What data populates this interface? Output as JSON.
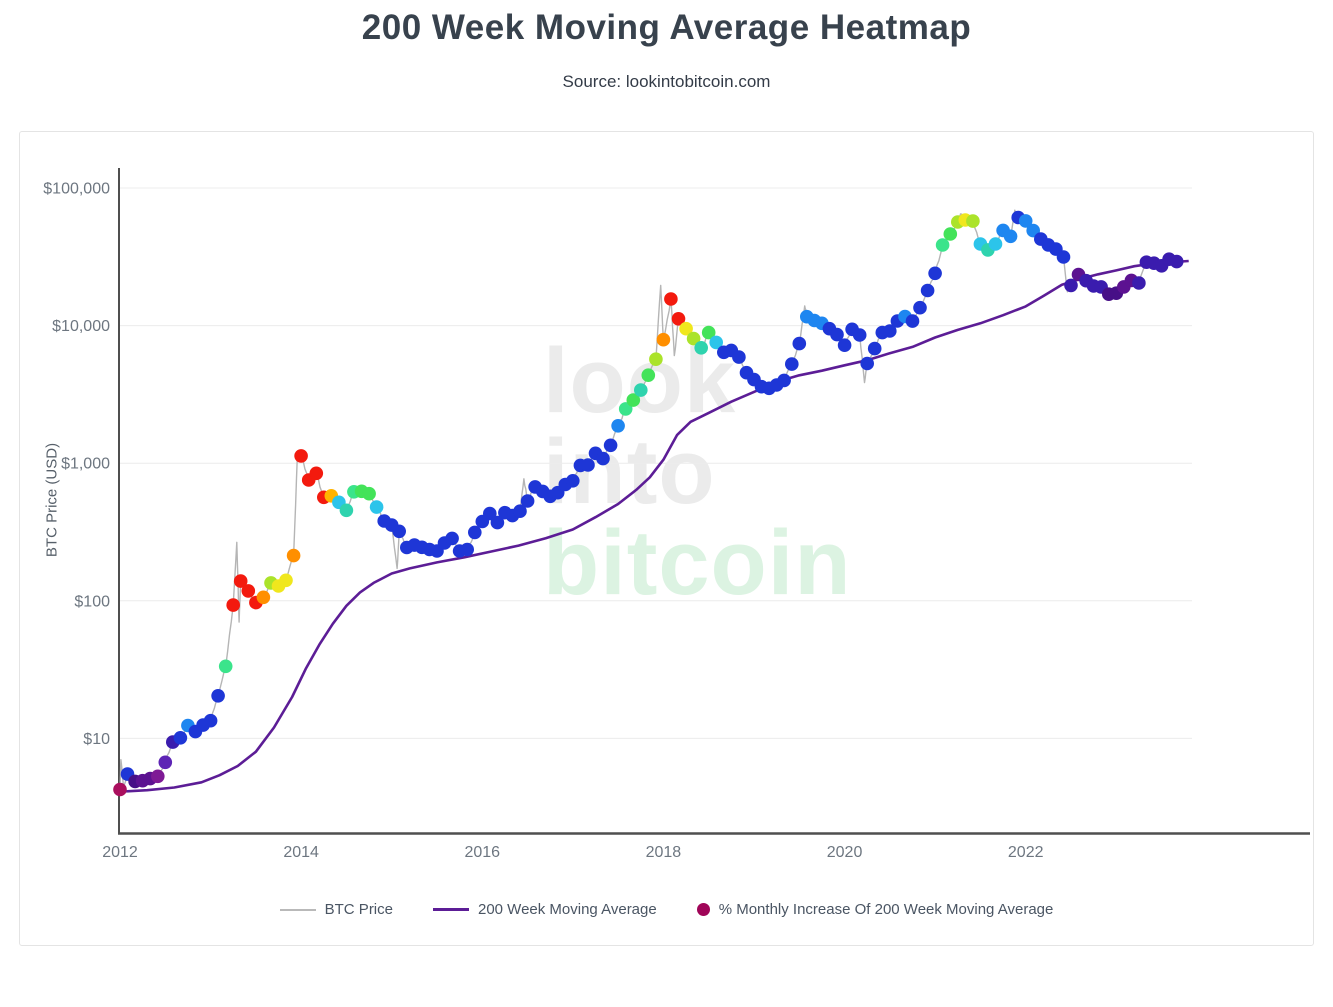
{
  "page": {
    "title": "200 Week Moving Average Heatmap",
    "subtitle": "Source: lookintobitcoin.com"
  },
  "watermark": {
    "lines": [
      "look",
      "into",
      "bitcoin"
    ],
    "gray": "#ebebeb",
    "green": "#dcf3e2"
  },
  "legend": {
    "items": [
      {
        "label": "BTC Price",
        "swatch": "line",
        "color": "#b9b9b9"
      },
      {
        "label": "200 Week Moving Average",
        "swatch": "line",
        "color": "#5c1d96"
      },
      {
        "label": "% Monthly Increase Of 200 Week Moving Average",
        "swatch": "dot",
        "color": "#a00558"
      }
    ]
  },
  "chart_data": {
    "type": "scatter",
    "title": "200 Week Moving Average Heatmap",
    "ylabel": "BTC Price (USD)",
    "y_scale": "log",
    "grid": true,
    "x_ticks": [
      2012,
      2014,
      2016,
      2018,
      2020,
      2022
    ],
    "y_ticks": [
      {
        "label": "$100,000",
        "value": 100000
      },
      {
        "label": "$10,000",
        "value": 10000
      },
      {
        "label": "$1,000",
        "value": 1000
      },
      {
        "label": "$100",
        "value": 100
      },
      {
        "label": "$10",
        "value": 10
      }
    ],
    "xlim": [
      2011.95,
      2023.85
    ],
    "ylim": [
      2,
      130000
    ],
    "palette": {
      "magenta": "#aa0f5e",
      "darkPurple": "#470f87",
      "purple": "#5c1291",
      "violet": "#7e1a95",
      "blueViolet": "#5d24b5",
      "indigo": "#3a1cae",
      "blue": "#1e36d6",
      "lightBlue": "#1e86f0",
      "cyan": "#2cc4ea",
      "teal": "#2fd3ae",
      "springGreen": "#3be48b",
      "green": "#43e359",
      "yellowGreen": "#abe32a",
      "yellow": "#f0e71d",
      "amber": "#ffb300",
      "orange": "#ff8f00",
      "red": "#f31a0e"
    },
    "series": [
      {
        "name": "BTC Price",
        "type": "line",
        "color": "#b5b5b5",
        "wick_points": [
          [
            2012.01,
            7.0
          ],
          [
            2012.04,
            4.4
          ],
          [
            2013.29,
            266
          ],
          [
            2013.315,
            70
          ],
          [
            2013.96,
            1200
          ],
          [
            2015.06,
            172
          ],
          [
            2016.46,
            770
          ],
          [
            2017.97,
            19600
          ],
          [
            2018.12,
            6050
          ],
          [
            2019.56,
            13900
          ],
          [
            2020.22,
            3850
          ],
          [
            2021.28,
            64800
          ],
          [
            2021.88,
            69000
          ],
          [
            2022.46,
            17600
          ],
          [
            2022.88,
            15500
          ],
          [
            2023.72,
            29500
          ]
        ]
      },
      {
        "name": "200 Week Moving Average",
        "type": "line",
        "color": "#5c1d96",
        "points": [
          [
            2012.0,
            4.1
          ],
          [
            2012.3,
            4.2
          ],
          [
            2012.6,
            4.4
          ],
          [
            2012.9,
            4.8
          ],
          [
            2013.1,
            5.4
          ],
          [
            2013.3,
            6.3
          ],
          [
            2013.5,
            8
          ],
          [
            2013.7,
            12
          ],
          [
            2013.9,
            20
          ],
          [
            2014.05,
            32
          ],
          [
            2014.2,
            48
          ],
          [
            2014.35,
            68
          ],
          [
            2014.5,
            92
          ],
          [
            2014.65,
            115
          ],
          [
            2014.8,
            135
          ],
          [
            2015.0,
            158
          ],
          [
            2015.2,
            172
          ],
          [
            2015.5,
            190
          ],
          [
            2015.8,
            207
          ],
          [
            2016.1,
            228
          ],
          [
            2016.4,
            252
          ],
          [
            2016.7,
            285
          ],
          [
            2017.0,
            330
          ],
          [
            2017.25,
            405
          ],
          [
            2017.5,
            505
          ],
          [
            2017.7,
            640
          ],
          [
            2017.85,
            790
          ],
          [
            2018.0,
            1060
          ],
          [
            2018.15,
            1600
          ],
          [
            2018.3,
            2000
          ],
          [
            2018.5,
            2320
          ],
          [
            2018.75,
            2800
          ],
          [
            2019.0,
            3300
          ],
          [
            2019.25,
            3900
          ],
          [
            2019.5,
            4350
          ],
          [
            2019.75,
            4700
          ],
          [
            2020.0,
            5150
          ],
          [
            2020.25,
            5600
          ],
          [
            2020.5,
            6300
          ],
          [
            2020.75,
            7000
          ],
          [
            2021.0,
            8200
          ],
          [
            2021.25,
            9300
          ],
          [
            2021.5,
            10400
          ],
          [
            2021.75,
            11900
          ],
          [
            2022.0,
            13800
          ],
          [
            2022.2,
            16500
          ],
          [
            2022.4,
            19800
          ],
          [
            2022.6,
            21800
          ],
          [
            2022.8,
            23600
          ],
          [
            2023.0,
            25200
          ],
          [
            2023.2,
            27000
          ],
          [
            2023.4,
            28200
          ],
          [
            2023.6,
            28900
          ],
          [
            2023.8,
            29500
          ]
        ]
      },
      {
        "name": "% Monthly Increase Of 200 Week Moving Average",
        "type": "scatter",
        "points": [
          [
            2012.0,
            4.25,
            "magenta"
          ],
          [
            2012.083,
            5.5,
            "blue"
          ],
          [
            2012.167,
            4.87,
            "darkPurple"
          ],
          [
            2012.25,
            4.93,
            "purple"
          ],
          [
            2012.333,
            5.1,
            "purple"
          ],
          [
            2012.417,
            5.3,
            "violet"
          ],
          [
            2012.5,
            6.7,
            "blueViolet"
          ],
          [
            2012.583,
            9.4,
            "indigo"
          ],
          [
            2012.667,
            10.1,
            "blue"
          ],
          [
            2012.75,
            12.4,
            "lightBlue"
          ],
          [
            2012.833,
            11.2,
            "blue"
          ],
          [
            2012.917,
            12.5,
            "blue"
          ],
          [
            2013.0,
            13.45,
            "blue"
          ],
          [
            2013.083,
            20.4,
            "blue"
          ],
          [
            2013.167,
            33.4,
            "springGreen"
          ],
          [
            2013.25,
            93,
            "red"
          ],
          [
            2013.333,
            139,
            "red"
          ],
          [
            2013.417,
            118,
            "red"
          ],
          [
            2013.5,
            97,
            "red"
          ],
          [
            2013.583,
            106,
            "orange"
          ],
          [
            2013.667,
            135,
            "yellowGreen"
          ],
          [
            2013.75,
            128,
            "yellow"
          ],
          [
            2013.833,
            141,
            "yellow"
          ],
          [
            2013.917,
            213,
            "orange"
          ],
          [
            2014.0,
            1130,
            "red"
          ],
          [
            2014.083,
            755,
            "red"
          ],
          [
            2014.167,
            845,
            "red"
          ],
          [
            2014.25,
            565,
            "red"
          ],
          [
            2014.333,
            580,
            "amber"
          ],
          [
            2014.417,
            520,
            "cyan"
          ],
          [
            2014.5,
            455,
            "teal"
          ],
          [
            2014.583,
            620,
            "springGreen"
          ],
          [
            2014.667,
            625,
            "green"
          ],
          [
            2014.75,
            600,
            "green"
          ],
          [
            2014.833,
            480,
            "cyan"
          ],
          [
            2014.917,
            380,
            "blue"
          ],
          [
            2015.0,
            355,
            "blue"
          ],
          [
            2015.083,
            320,
            "blue"
          ],
          [
            2015.167,
            244,
            "blue"
          ],
          [
            2015.25,
            254,
            "blue"
          ],
          [
            2015.333,
            245,
            "blue"
          ],
          [
            2015.417,
            236,
            "blue"
          ],
          [
            2015.5,
            230,
            "blue"
          ],
          [
            2015.583,
            263,
            "blue"
          ],
          [
            2015.667,
            284,
            "blue"
          ],
          [
            2015.75,
            230,
            "blue"
          ],
          [
            2015.833,
            236,
            "blue"
          ],
          [
            2015.917,
            314,
            "blue"
          ],
          [
            2016.0,
            377,
            "blue"
          ],
          [
            2016.083,
            430,
            "blue"
          ],
          [
            2016.167,
            370,
            "blue"
          ],
          [
            2016.25,
            437,
            "blue"
          ],
          [
            2016.333,
            416,
            "blue"
          ],
          [
            2016.417,
            448,
            "blue"
          ],
          [
            2016.5,
            531,
            "blue"
          ],
          [
            2016.583,
            673,
            "blue"
          ],
          [
            2016.667,
            624,
            "blue"
          ],
          [
            2016.75,
            575,
            "blue"
          ],
          [
            2016.833,
            610,
            "blue"
          ],
          [
            2016.917,
            700,
            "blue"
          ],
          [
            2017.0,
            745,
            "blue"
          ],
          [
            2017.083,
            964,
            "blue"
          ],
          [
            2017.167,
            970,
            "blue"
          ],
          [
            2017.25,
            1180,
            "blue"
          ],
          [
            2017.333,
            1080,
            "blue"
          ],
          [
            2017.417,
            1350,
            "blue"
          ],
          [
            2017.5,
            1870,
            "lightBlue"
          ],
          [
            2017.583,
            2480,
            "springGreen"
          ],
          [
            2017.667,
            2875,
            "green"
          ],
          [
            2017.75,
            3400,
            "teal"
          ],
          [
            2017.833,
            4360,
            "green"
          ],
          [
            2017.917,
            5700,
            "yellowGreen"
          ],
          [
            2018.0,
            7900,
            "orange"
          ],
          [
            2018.083,
            15600,
            "red"
          ],
          [
            2018.167,
            11200,
            "red"
          ],
          [
            2018.25,
            9500,
            "yellow"
          ],
          [
            2018.333,
            8050,
            "yellowGreen"
          ],
          [
            2018.417,
            6900,
            "teal"
          ],
          [
            2018.5,
            8900,
            "green"
          ],
          [
            2018.583,
            7550,
            "cyan"
          ],
          [
            2018.667,
            6400,
            "blue"
          ],
          [
            2018.75,
            6600,
            "blue"
          ],
          [
            2018.833,
            5900,
            "blue"
          ],
          [
            2018.917,
            4550,
            "blue"
          ],
          [
            2019.0,
            4050,
            "blue"
          ],
          [
            2019.083,
            3600,
            "blue"
          ],
          [
            2019.167,
            3500,
            "blue"
          ],
          [
            2019.25,
            3700,
            "blue"
          ],
          [
            2019.333,
            4000,
            "blue"
          ],
          [
            2019.417,
            5250,
            "blue"
          ],
          [
            2019.5,
            7400,
            "blue"
          ],
          [
            2019.583,
            11600,
            "lightBlue"
          ],
          [
            2019.667,
            10900,
            "lightBlue"
          ],
          [
            2019.75,
            10400,
            "lightBlue"
          ],
          [
            2019.833,
            9500,
            "blue"
          ],
          [
            2019.917,
            8600,
            "blue"
          ],
          [
            2020.0,
            7200,
            "blue"
          ],
          [
            2020.083,
            9400,
            "blue"
          ],
          [
            2020.167,
            8550,
            "blue"
          ],
          [
            2020.25,
            5300,
            "blue"
          ],
          [
            2020.333,
            6800,
            "blue"
          ],
          [
            2020.417,
            8900,
            "blue"
          ],
          [
            2020.5,
            9140,
            "blue"
          ],
          [
            2020.583,
            10800,
            "blue"
          ],
          [
            2020.667,
            11650,
            "lightBlue"
          ],
          [
            2020.75,
            10780,
            "blue"
          ],
          [
            2020.833,
            13500,
            "blue"
          ],
          [
            2020.917,
            18000,
            "blue"
          ],
          [
            2021.0,
            24000,
            "blue"
          ],
          [
            2021.083,
            38500,
            "springGreen"
          ],
          [
            2021.167,
            46300,
            "green"
          ],
          [
            2021.25,
            56600,
            "yellowGreen"
          ],
          [
            2021.333,
            58500,
            "yellow"
          ],
          [
            2021.417,
            57500,
            "yellowGreen"
          ],
          [
            2021.5,
            39200,
            "cyan"
          ],
          [
            2021.583,
            35500,
            "teal"
          ],
          [
            2021.667,
            39200,
            "cyan"
          ],
          [
            2021.75,
            49200,
            "lightBlue"
          ],
          [
            2021.833,
            44600,
            "lightBlue"
          ],
          [
            2021.917,
            61000,
            "blue"
          ],
          [
            2022.0,
            57700,
            "lightBlue"
          ],
          [
            2022.083,
            49000,
            "lightBlue"
          ],
          [
            2022.167,
            42500,
            "blue"
          ],
          [
            2022.25,
            38600,
            "blue"
          ],
          [
            2022.333,
            36000,
            "blue"
          ],
          [
            2022.417,
            31500,
            "blue"
          ],
          [
            2022.5,
            19600,
            "indigo"
          ],
          [
            2022.583,
            23500,
            "purple"
          ],
          [
            2022.667,
            21200,
            "indigo"
          ],
          [
            2022.75,
            19400,
            "indigo"
          ],
          [
            2022.833,
            19100,
            "indigo"
          ],
          [
            2022.917,
            16900,
            "darkPurple"
          ],
          [
            2023.0,
            17200,
            "darkPurple"
          ],
          [
            2023.083,
            19100,
            "purple"
          ],
          [
            2023.167,
            21300,
            "purple"
          ],
          [
            2023.25,
            20400,
            "indigo"
          ],
          [
            2023.333,
            28900,
            "indigo"
          ],
          [
            2023.417,
            28400,
            "indigo"
          ],
          [
            2023.5,
            27200,
            "indigo"
          ],
          [
            2023.583,
            30400,
            "indigo"
          ],
          [
            2023.667,
            29200,
            "indigo"
          ]
        ]
      }
    ]
  }
}
